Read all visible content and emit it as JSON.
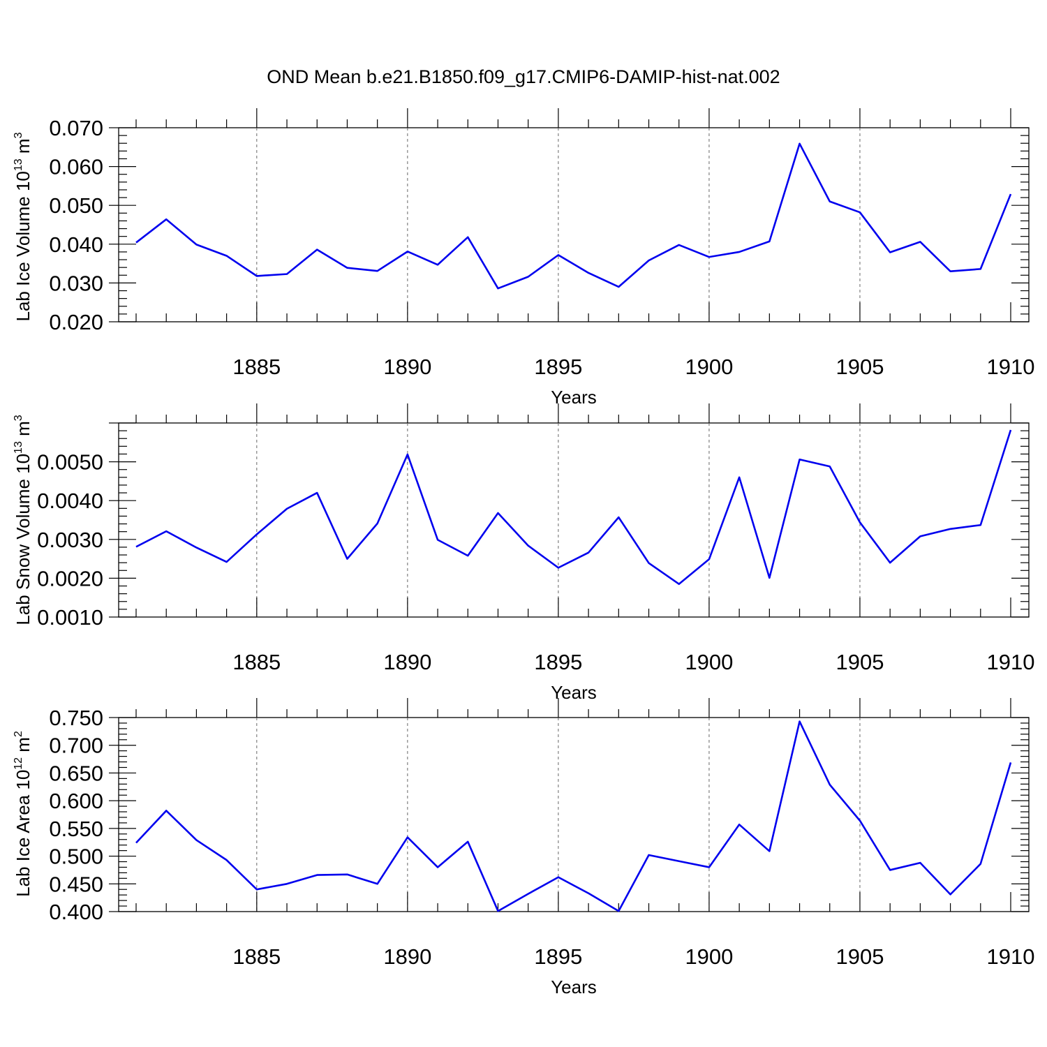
{
  "title": "OND Mean b.e21.B1850.f09_g17.CMIP6-DAMIP-hist-nat.002",
  "chart_data": [
    {
      "type": "line",
      "title": "OND Mean b.e21.B1850.f09_g17.CMIP6-DAMIP-hist-nat.002",
      "xlabel": "Years",
      "ylabel": {
        "main": "Lab Ice Volume 10",
        "sup1": "13",
        "unit": " m",
        "sup2": "3"
      },
      "x": [
        1881,
        1882,
        1883,
        1884,
        1885,
        1886,
        1887,
        1888,
        1889,
        1890,
        1891,
        1892,
        1893,
        1894,
        1895,
        1896,
        1897,
        1898,
        1899,
        1900,
        1901,
        1902,
        1903,
        1904,
        1905,
        1906,
        1907,
        1908,
        1909,
        1910
      ],
      "series": [
        {
          "name": "Lab Ice Volume",
          "color": "#0000ee",
          "values": [
            0.0404,
            0.0464,
            0.0399,
            0.037,
            0.0318,
            0.0323,
            0.0386,
            0.0339,
            0.0331,
            0.0381,
            0.0347,
            0.0418,
            0.0286,
            0.0316,
            0.0372,
            0.0326,
            0.029,
            0.0358,
            0.0398,
            0.0367,
            0.038,
            0.0407,
            0.0659,
            0.051,
            0.0482,
            0.0379,
            0.0406,
            0.033,
            0.0336,
            0.0529
          ]
        }
      ],
      "xlim": [
        1881,
        1910
      ],
      "ylim": [
        0.02,
        0.07
      ],
      "xticks": [
        "1885",
        "1890",
        "1895",
        "1900",
        "1905",
        "1910"
      ],
      "yticks": [
        "0.020",
        "0.030",
        "0.040",
        "0.050",
        "0.060",
        "0.070"
      ],
      "grid": "vertical-dashed"
    },
    {
      "type": "line",
      "xlabel": "Years",
      "ylabel": {
        "main": "Lab Snow Volume 10",
        "sup1": "13",
        "unit": " m",
        "sup2": "3"
      },
      "x": [
        1881,
        1882,
        1883,
        1884,
        1885,
        1886,
        1887,
        1888,
        1889,
        1890,
        1891,
        1892,
        1893,
        1894,
        1895,
        1896,
        1897,
        1898,
        1899,
        1900,
        1901,
        1902,
        1903,
        1904,
        1905,
        1906,
        1907,
        1908,
        1909,
        1910
      ],
      "series": [
        {
          "name": "Lab Snow Volume",
          "color": "#0000ee",
          "values": [
            0.00281,
            0.00321,
            0.00279,
            0.00242,
            0.00313,
            0.00379,
            0.0042,
            0.0025,
            0.00341,
            0.00519,
            0.00299,
            0.00258,
            0.00368,
            0.00284,
            0.00227,
            0.00266,
            0.00357,
            0.00239,
            0.00185,
            0.00249,
            0.0046,
            0.00201,
            0.00506,
            0.00488,
            0.00344,
            0.0024,
            0.00308,
            0.00327,
            0.00337,
            0.00582
          ]
        }
      ],
      "xlim": [
        1881,
        1910
      ],
      "ylim": [
        0.001,
        0.006
      ],
      "xticks": [
        "1885",
        "1890",
        "1895",
        "1900",
        "1905",
        "1910"
      ],
      "yticks": [
        "0.0010",
        "0.0020",
        "0.0030",
        "0.0040",
        "0.0050"
      ],
      "grid": "vertical-dashed"
    },
    {
      "type": "line",
      "xlabel": "Years",
      "ylabel": {
        "main": "Lab Ice Area 10",
        "sup1": "12",
        "unit": " m",
        "sup2": "2"
      },
      "x": [
        1881,
        1882,
        1883,
        1884,
        1885,
        1886,
        1887,
        1888,
        1889,
        1890,
        1891,
        1892,
        1893,
        1894,
        1895,
        1896,
        1897,
        1898,
        1899,
        1900,
        1901,
        1902,
        1903,
        1904,
        1905,
        1906,
        1907,
        1908,
        1909,
        1910
      ],
      "series": [
        {
          "name": "Lab Ice Area",
          "color": "#0000ee",
          "values": [
            0.524,
            0.582,
            0.529,
            0.493,
            0.44,
            0.45,
            0.466,
            0.467,
            0.45,
            0.534,
            0.48,
            0.526,
            0.401,
            0.432,
            0.462,
            0.433,
            0.401,
            0.502,
            0.491,
            0.48,
            0.557,
            0.509,
            0.743,
            0.629,
            0.564,
            0.475,
            0.488,
            0.431,
            0.486,
            0.669
          ]
        }
      ],
      "xlim": [
        1881,
        1910
      ],
      "ylim": [
        0.4,
        0.75
      ],
      "xticks": [
        "1885",
        "1890",
        "1895",
        "1900",
        "1905",
        "1910"
      ],
      "yticks": [
        "0.400",
        "0.450",
        "0.500",
        "0.550",
        "0.600",
        "0.650",
        "0.700",
        "0.750"
      ],
      "grid": "vertical-dashed"
    }
  ]
}
